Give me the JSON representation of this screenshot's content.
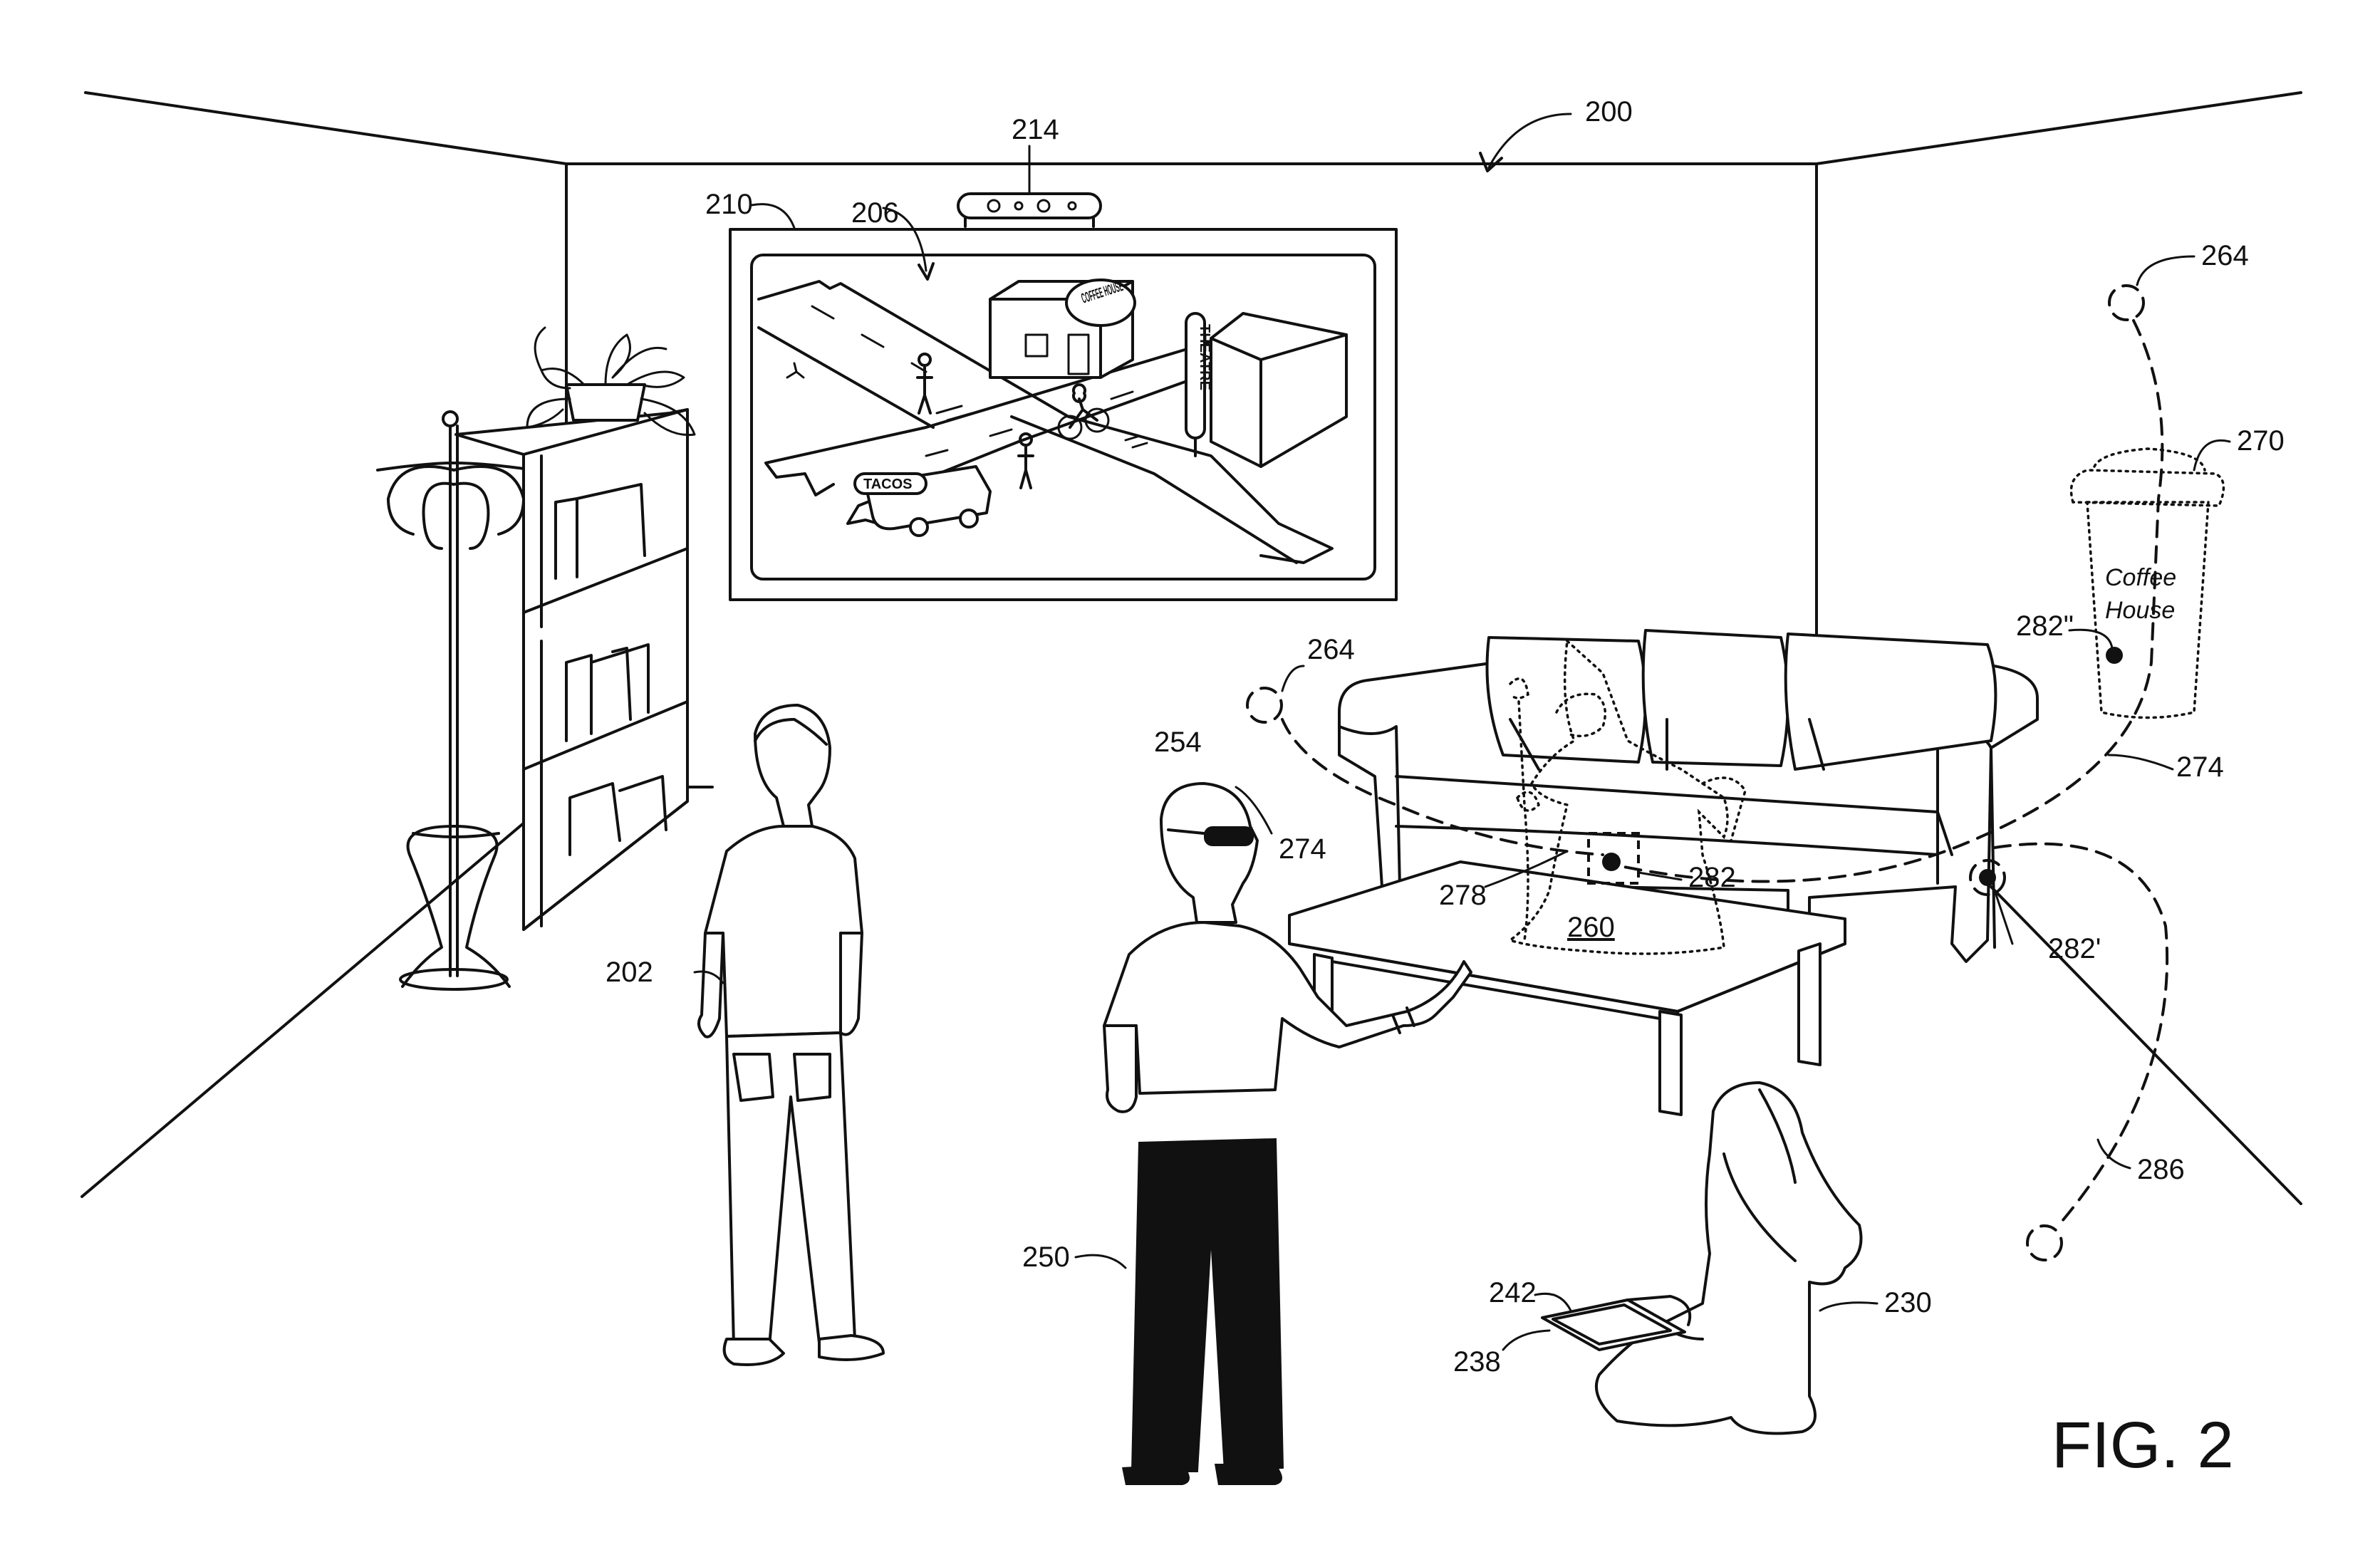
{
  "figure": {
    "title": "FIG. 2",
    "labels": {
      "room": "200",
      "camera": "214",
      "display": "210",
      "scene": "206",
      "trail_start_right": "264",
      "trail_start_left": "264",
      "cup": "270",
      "cup_point": "282\"",
      "trail_right": "274",
      "trail_left": "274",
      "target_point": "282",
      "couch_point": "282'",
      "wizard_hand": "278",
      "wizard": "260",
      "hmd": "254",
      "person_left": "202",
      "person_pointing": "250",
      "person_sitting": "230",
      "tablet": "242",
      "tablet_screen": "238",
      "trail_bottom": "286"
    },
    "scene_text": {
      "taco_sign": "TACOS",
      "theatre_sign": "THEATRE",
      "coffee_sign": "COFFEE HOUSE"
    },
    "cup_text": {
      "line1": "Coffee",
      "line2": "House"
    }
  }
}
